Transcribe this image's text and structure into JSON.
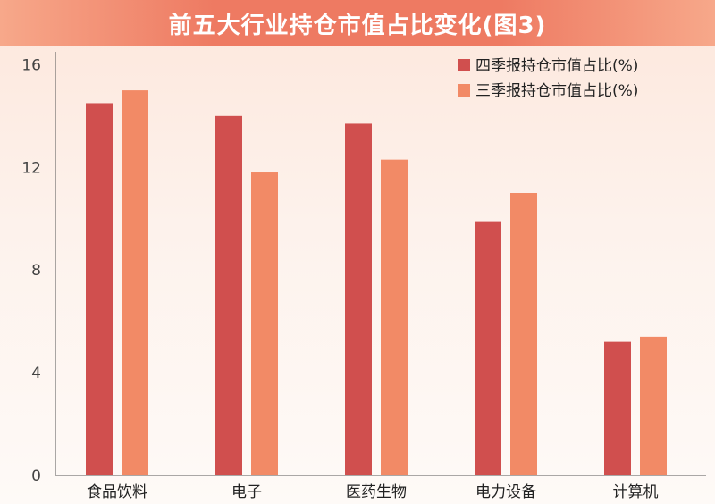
{
  "title": "前五大行业持仓市值占比变化(图3)",
  "colors": {
    "q4": "#d04f4e",
    "q3": "#f28a66",
    "axis": "#555555"
  },
  "chart_data": {
    "type": "bar",
    "title": "前五大行业持仓市值占比变化(图3)",
    "xlabel": "",
    "ylabel": "",
    "categories": [
      "食品饮料",
      "电子",
      "医药生物",
      "电力设备",
      "计算机"
    ],
    "series": [
      {
        "name": "四季报持仓市值占比(%)",
        "values": [
          14.5,
          14.0,
          13.7,
          9.9,
          5.2
        ]
      },
      {
        "name": "三季报持仓市值占比(%)",
        "values": [
          15.0,
          11.8,
          12.3,
          11.0,
          5.4
        ]
      }
    ],
    "ylim": [
      0,
      16.5
    ],
    "yticks": [
      0,
      4,
      8,
      12,
      16
    ],
    "grid": false,
    "legend_position": "top-right"
  }
}
